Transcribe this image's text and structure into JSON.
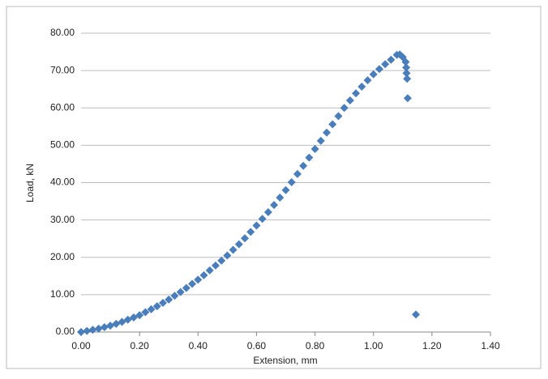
{
  "chart_data": {
    "type": "scatter",
    "x_label": "Extension, mm",
    "y_label": "Load, kN",
    "series": [
      {
        "name": "Load",
        "color": "#4a7ebb",
        "x": [
          0.0,
          0.02,
          0.04,
          0.06,
          0.08,
          0.1,
          0.12,
          0.14,
          0.16,
          0.18,
          0.2,
          0.22,
          0.24,
          0.26,
          0.28,
          0.3,
          0.32,
          0.34,
          0.36,
          0.38,
          0.4,
          0.42,
          0.44,
          0.46,
          0.48,
          0.5,
          0.52,
          0.54,
          0.56,
          0.58,
          0.6,
          0.62,
          0.64,
          0.66,
          0.68,
          0.7,
          0.72,
          0.74,
          0.76,
          0.78,
          0.8,
          0.82,
          0.84,
          0.86,
          0.88,
          0.9,
          0.92,
          0.94,
          0.96,
          0.98,
          1.0,
          1.02,
          1.04,
          1.06,
          1.08,
          1.09,
          1.1,
          1.11,
          1.112,
          1.113,
          1.115,
          1.117,
          1.145
        ],
        "values": [
          0.0,
          0.3,
          0.6,
          0.9,
          1.3,
          1.7,
          2.2,
          2.7,
          3.3,
          3.9,
          4.5,
          5.3,
          6.1,
          6.9,
          7.8,
          8.7,
          9.7,
          10.7,
          11.8,
          12.9,
          14.0,
          15.2,
          16.5,
          17.8,
          19.1,
          20.5,
          22.0,
          23.5,
          25.1,
          26.8,
          28.5,
          30.3,
          32.1,
          34.0,
          36.0,
          38.0,
          40.1,
          42.3,
          44.5,
          46.7,
          49.0,
          51.2,
          53.4,
          55.6,
          57.8,
          60.0,
          62.0,
          63.9,
          65.7,
          67.4,
          69.0,
          70.4,
          71.7,
          72.9,
          74.2,
          74.3,
          73.6,
          72.3,
          70.8,
          69.3,
          67.8,
          62.6,
          4.7
        ]
      }
    ],
    "xlim": [
      0,
      1.4
    ],
    "xticks": [
      {
        "value": 0,
        "label": "0.00"
      },
      {
        "value": 0.2,
        "label": "0.20"
      },
      {
        "value": 0.4,
        "label": "0.40"
      },
      {
        "value": 0.6,
        "label": "0.60"
      },
      {
        "value": 0.8,
        "label": "0.80"
      },
      {
        "value": 1.0,
        "label": "1.00"
      },
      {
        "value": 1.2,
        "label": "1.20"
      },
      {
        "value": 1.4,
        "label": "1.40"
      }
    ],
    "ylim": [
      0,
      80
    ],
    "yticks": [
      {
        "value": 0,
        "label": "0.00"
      },
      {
        "value": 10,
        "label": "10.00"
      },
      {
        "value": 20,
        "label": "20.00"
      },
      {
        "value": 30,
        "label": "30.00"
      },
      {
        "value": 40,
        "label": "40.00"
      },
      {
        "value": 50,
        "label": "50.00"
      },
      {
        "value": 60,
        "label": "60.00"
      },
      {
        "value": 70,
        "label": "70.00"
      },
      {
        "value": 80,
        "label": "80.00"
      }
    ],
    "grid": true
  }
}
